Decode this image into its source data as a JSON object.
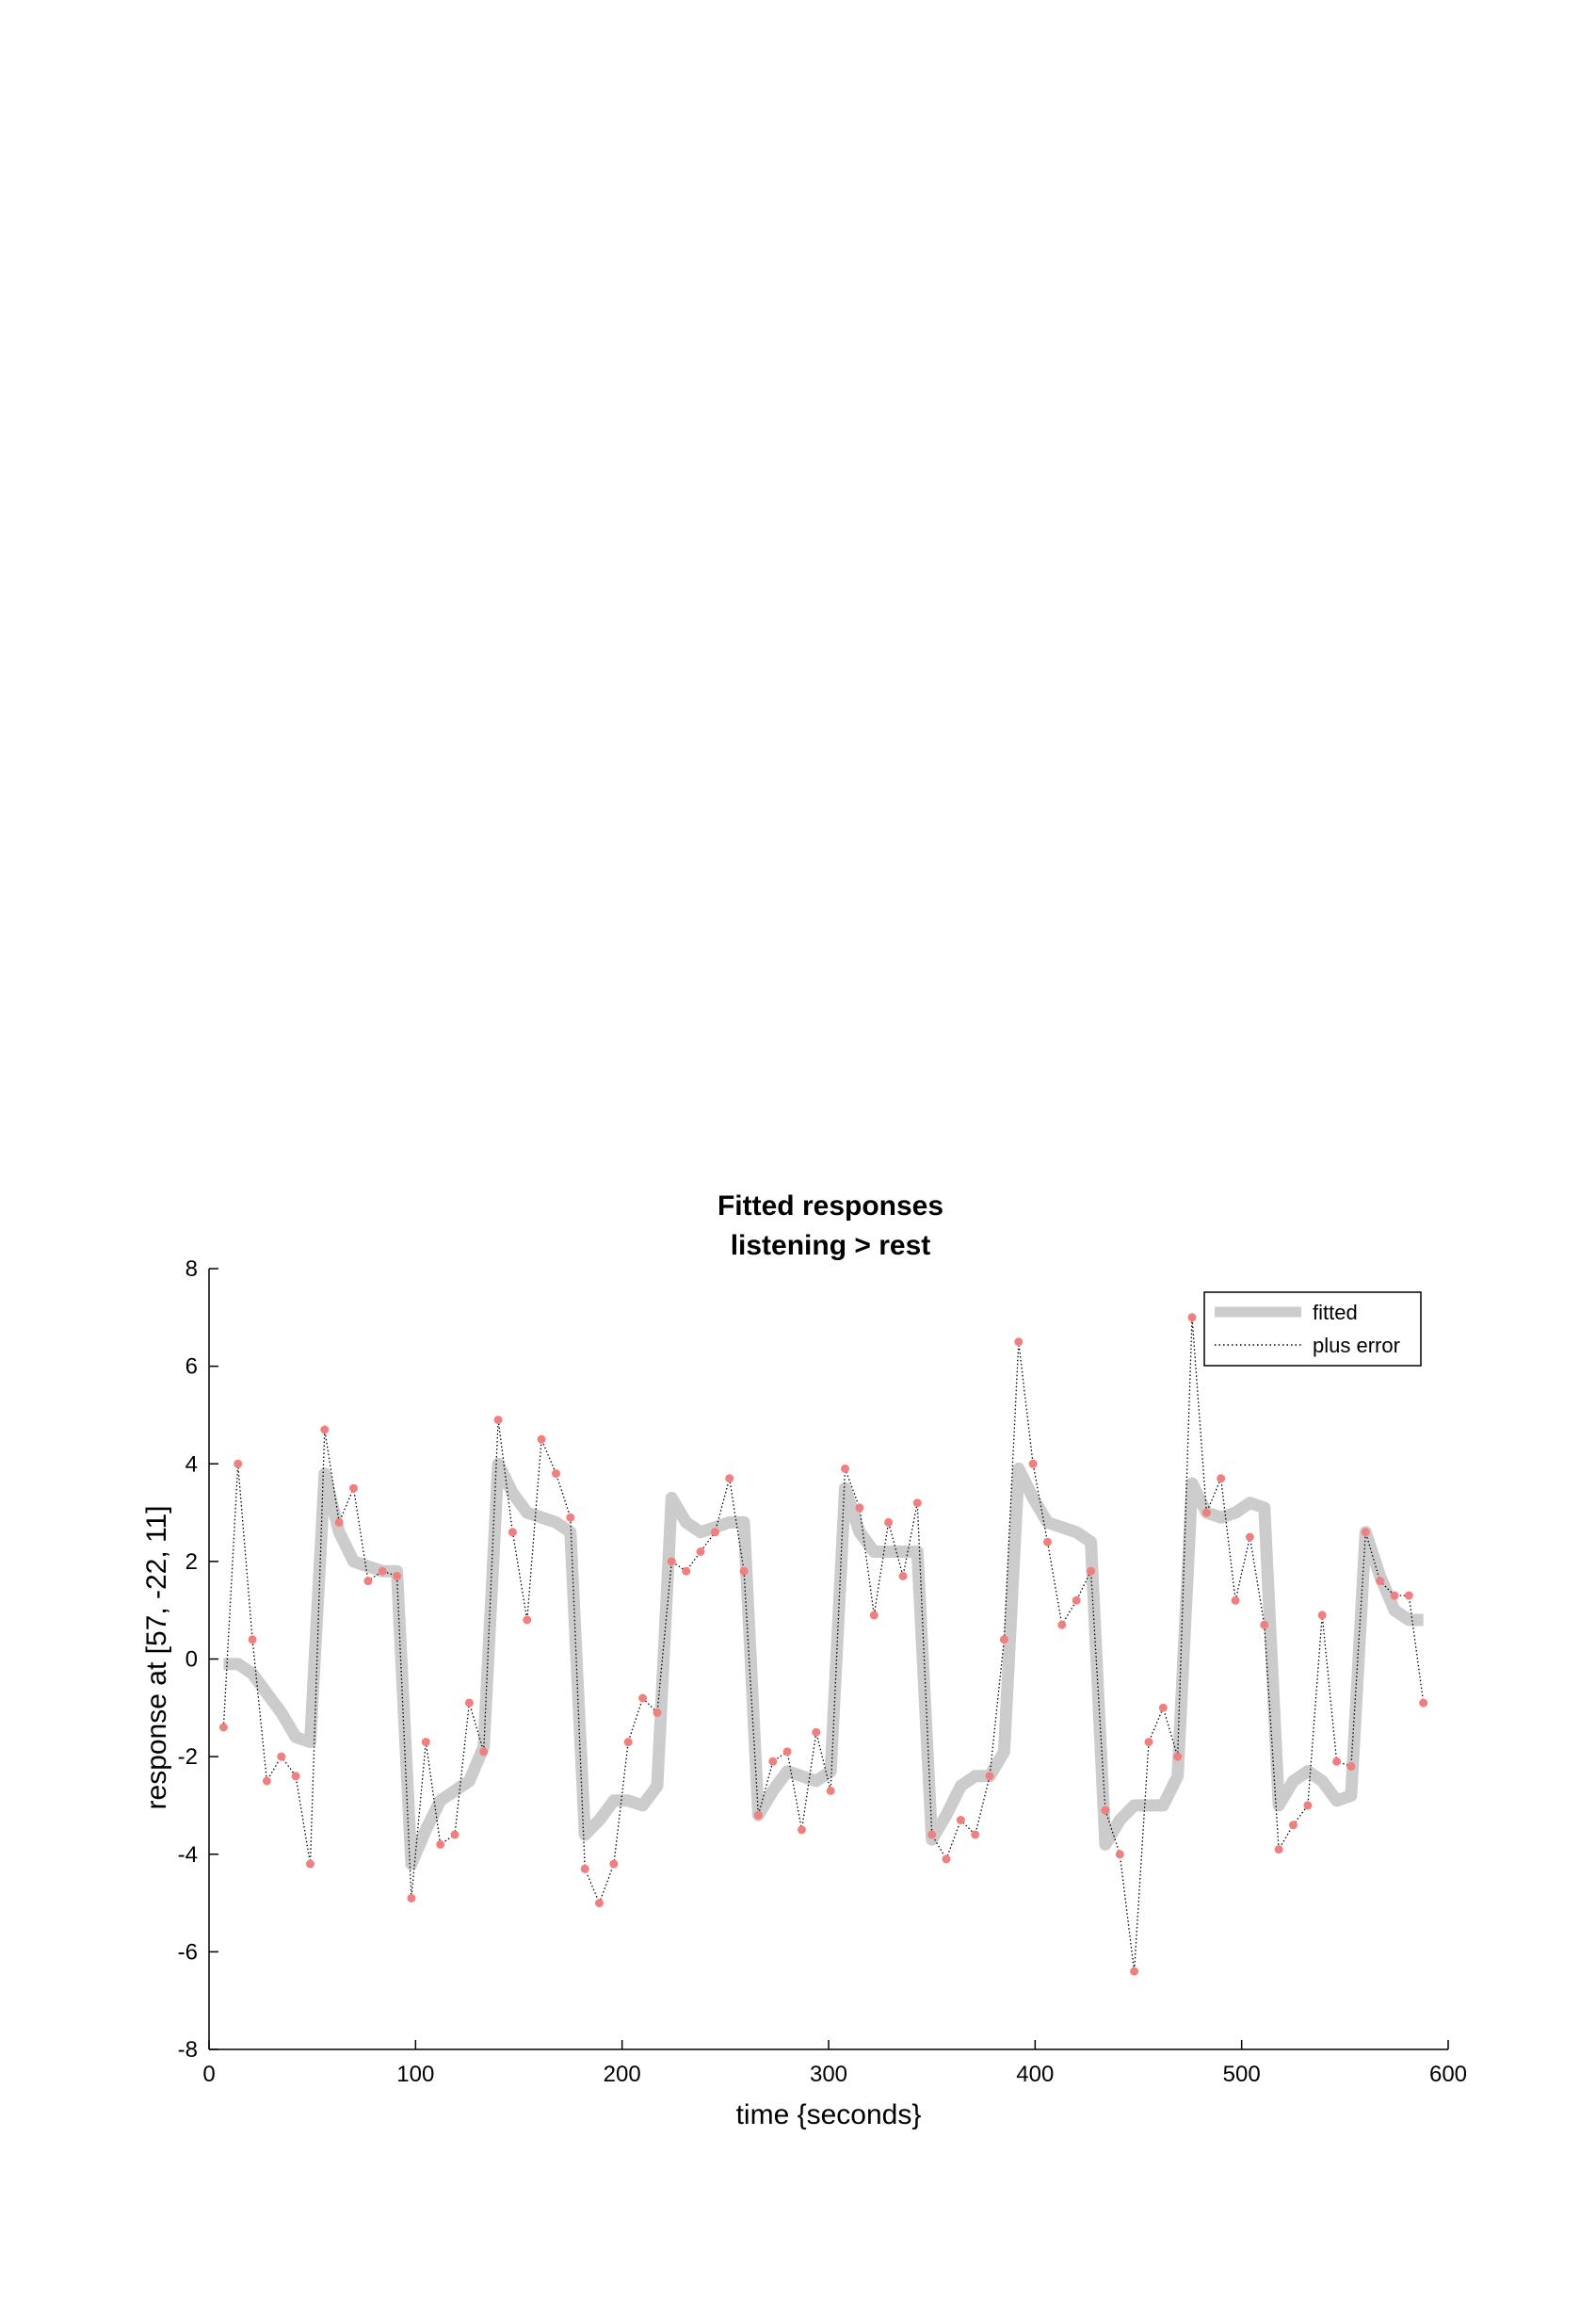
{
  "chart_data": {
    "type": "line",
    "title": [
      "Fitted responses",
      "listening > rest"
    ],
    "xlabel": "time {seconds}",
    "ylabel": "response at [57, -22, 11]",
    "xlim": [
      0,
      600
    ],
    "ylim": [
      -8,
      8
    ],
    "xticks": [
      0,
      100,
      200,
      300,
      400,
      500,
      600
    ],
    "yticks": [
      -8,
      -6,
      -4,
      -2,
      0,
      2,
      4,
      6,
      8
    ],
    "grid": false,
    "legend_position": "top-right",
    "series": [
      {
        "name": "fitted",
        "style": "thick",
        "color": "#cccccc",
        "x": [
          7,
          14,
          21,
          28,
          35,
          42,
          49,
          56,
          63,
          70,
          77,
          84,
          91,
          98,
          105,
          112,
          119,
          126,
          133,
          140,
          147,
          154,
          161,
          168,
          175,
          182,
          189,
          196,
          203,
          210,
          217,
          224,
          231,
          238,
          245,
          252,
          259,
          266,
          273,
          280,
          287,
          294,
          301,
          308,
          315,
          322,
          329,
          336,
          343,
          350,
          357,
          364,
          371,
          378,
          385,
          392,
          399,
          406,
          413,
          420,
          427,
          434,
          441,
          448,
          455,
          462,
          469,
          476,
          483,
          490,
          497,
          504,
          511,
          518,
          525,
          532,
          539,
          546,
          553,
          560,
          567,
          574,
          581,
          588
        ],
        "values": [
          -0.1,
          -0.1,
          -0.3,
          -0.7,
          -1.1,
          -1.6,
          -1.7,
          3.8,
          2.6,
          2.0,
          1.9,
          1.8,
          1.8,
          -4.2,
          -3.5,
          -2.9,
          -2.7,
          -2.5,
          -1.8,
          4.0,
          3.4,
          3.0,
          2.9,
          2.8,
          2.6,
          -3.6,
          -3.3,
          -2.9,
          -2.9,
          -3.0,
          -2.6,
          3.3,
          2.8,
          2.6,
          2.7,
          2.8,
          2.8,
          -3.2,
          -2.7,
          -2.3,
          -2.4,
          -2.5,
          -2.3,
          3.5,
          2.6,
          2.2,
          2.2,
          2.2,
          2.2,
          -3.7,
          -3.2,
          -2.6,
          -2.4,
          -2.4,
          -1.9,
          3.9,
          3.3,
          2.8,
          2.7,
          2.6,
          2.4,
          -3.8,
          -3.3,
          -3.0,
          -3.0,
          -3.0,
          -2.4,
          3.6,
          3.0,
          2.9,
          3.0,
          3.2,
          3.1,
          -3.0,
          -2.5,
          -2.3,
          -2.5,
          -2.9,
          -2.8,
          2.6,
          1.7,
          1.0,
          0.8,
          0.8
        ]
      },
      {
        "name": "plus error",
        "style": "dotted",
        "color": "#000000",
        "marker_color": "#f08080",
        "x": [
          7,
          14,
          21,
          28,
          35,
          42,
          49,
          56,
          63,
          70,
          77,
          84,
          91,
          98,
          105,
          112,
          119,
          126,
          133,
          140,
          147,
          154,
          161,
          168,
          175,
          182,
          189,
          196,
          203,
          210,
          217,
          224,
          231,
          238,
          245,
          252,
          259,
          266,
          273,
          280,
          287,
          294,
          301,
          308,
          315,
          322,
          329,
          336,
          343,
          350,
          357,
          364,
          371,
          378,
          385,
          392,
          399,
          406,
          413,
          420,
          427,
          434,
          441,
          448,
          455,
          462,
          469,
          476,
          483,
          490,
          497,
          504,
          511,
          518,
          525,
          532,
          539,
          546,
          553,
          560,
          567,
          574,
          581,
          588
        ],
        "values": [
          -1.4,
          4.0,
          0.4,
          -2.5,
          -2.0,
          -2.4,
          -4.2,
          4.7,
          2.8,
          3.5,
          1.6,
          1.8,
          1.7,
          -4.9,
          -1.7,
          -3.8,
          -3.6,
          -0.9,
          -1.9,
          4.9,
          2.6,
          0.8,
          4.5,
          3.8,
          2.9,
          -4.3,
          -5.0,
          -4.2,
          -1.7,
          -0.8,
          -1.1,
          2.0,
          1.8,
          2.2,
          2.6,
          3.7,
          1.8,
          -3.2,
          -2.1,
          -1.9,
          -3.5,
          -1.5,
          -2.7,
          3.9,
          3.1,
          0.9,
          2.8,
          1.7,
          3.2,
          -3.6,
          -4.1,
          -3.3,
          -3.6,
          -2.4,
          0.4,
          6.5,
          4.0,
          2.4,
          0.7,
          1.2,
          1.8,
          -3.1,
          -4.0,
          -6.4,
          -1.7,
          -1.0,
          -2.0,
          7.0,
          3.0,
          3.7,
          1.2,
          2.5,
          0.7,
          -3.9,
          -3.4,
          -3.0,
          0.9,
          -2.1,
          -2.2,
          2.6,
          1.6,
          1.3,
          1.3,
          -0.9
        ]
      }
    ]
  }
}
